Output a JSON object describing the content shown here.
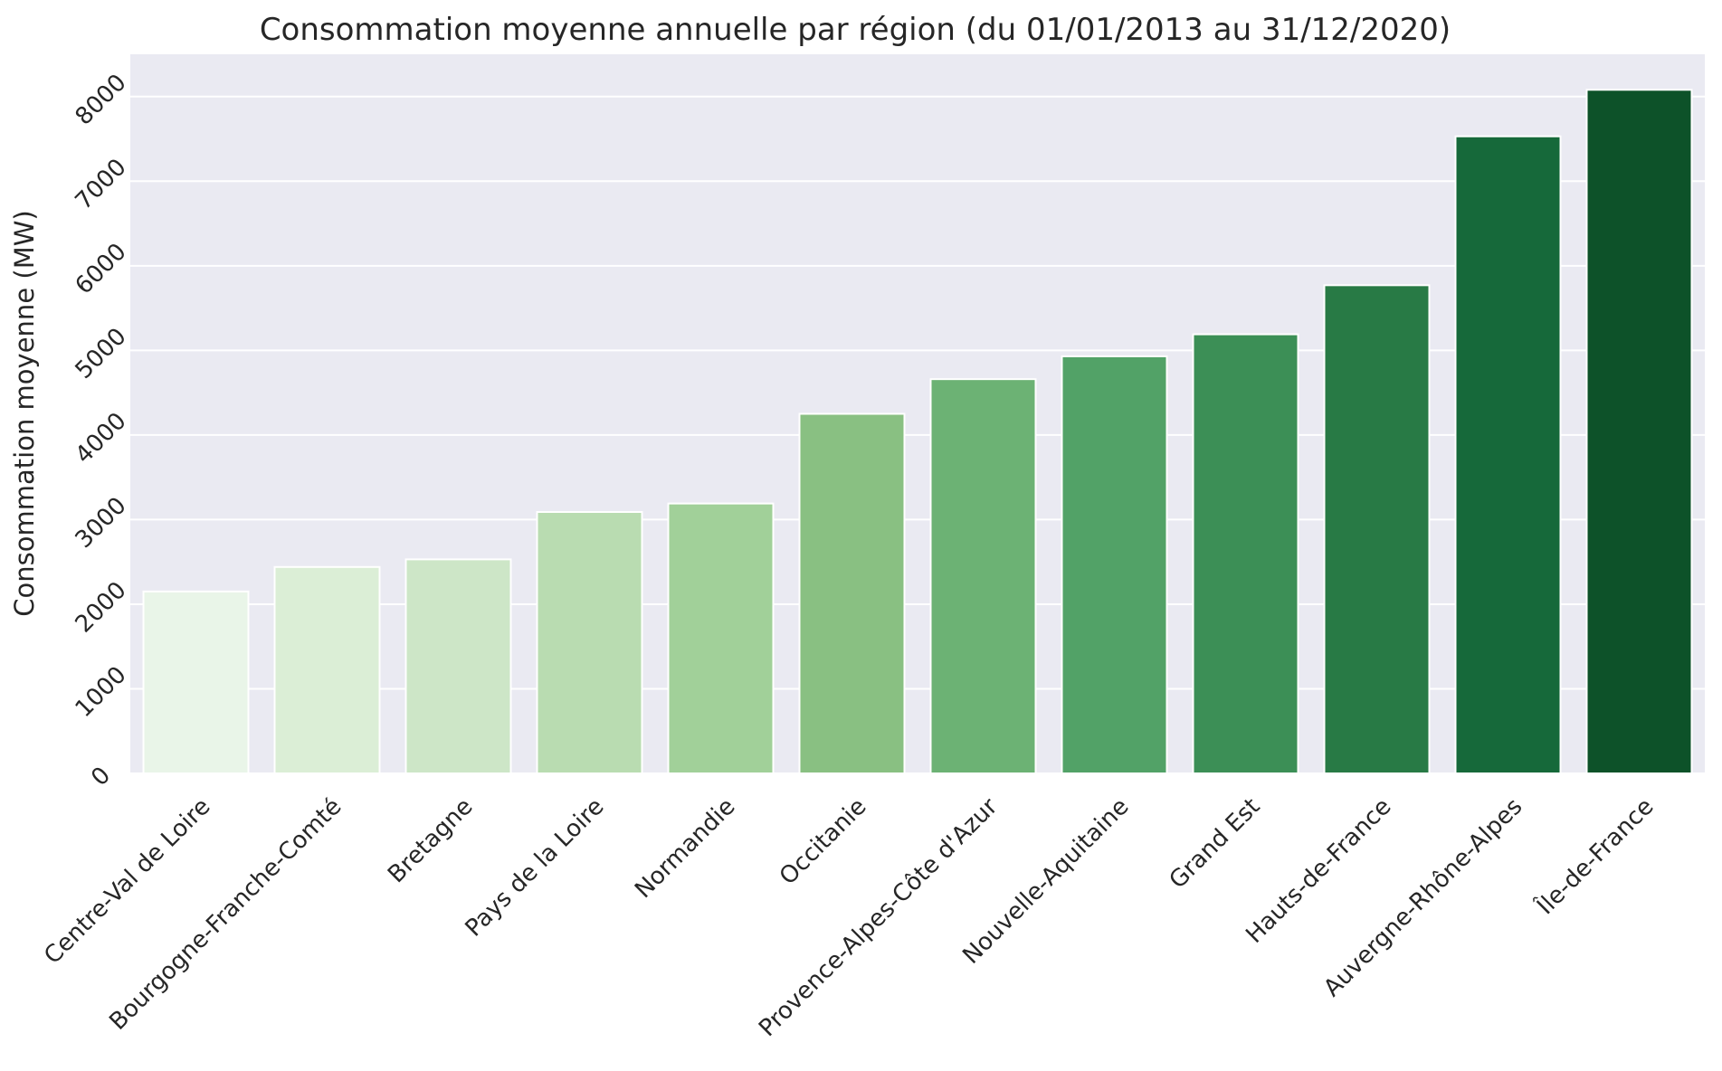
{
  "chart_data": {
    "type": "bar",
    "title": "Consommation moyenne annuelle par région (du 01/01/2013 au 31/12/2020)",
    "xlabel": "",
    "ylabel": "Consommation moyenne (MW)",
    "ylim": [
      0,
      8500
    ],
    "yticks": [
      "0",
      "1000",
      "2000",
      "3000",
      "4000",
      "5000",
      "6000",
      "7000",
      "8000"
    ],
    "grid": true,
    "categories": [
      "Centre-Val de Loire",
      "Bourgogne-Franche-Comté",
      "Bretagne",
      "Pays de la Loire",
      "Normandie",
      "Occitanie",
      "Provence-Alpes-Côte d'Azur",
      "Nouvelle-Aquitaine",
      "Grand Est",
      "Hauts-de-France",
      "Auvergne-Rhône-Alpes",
      "Île-de-France"
    ],
    "values": [
      2150,
      2440,
      2530,
      3090,
      3190,
      4250,
      4660,
      4930,
      5190,
      5770,
      7530,
      8080
    ],
    "colors": [
      "#e9f5e8",
      "#dbeed6",
      "#cde6c7",
      "#b9dcb1",
      "#a1d099",
      "#89c082",
      "#6cb274",
      "#52a267",
      "#3c8f56",
      "#287a45",
      "#16693a",
      "#0d5229"
    ],
    "background": "#eaeaf2"
  }
}
